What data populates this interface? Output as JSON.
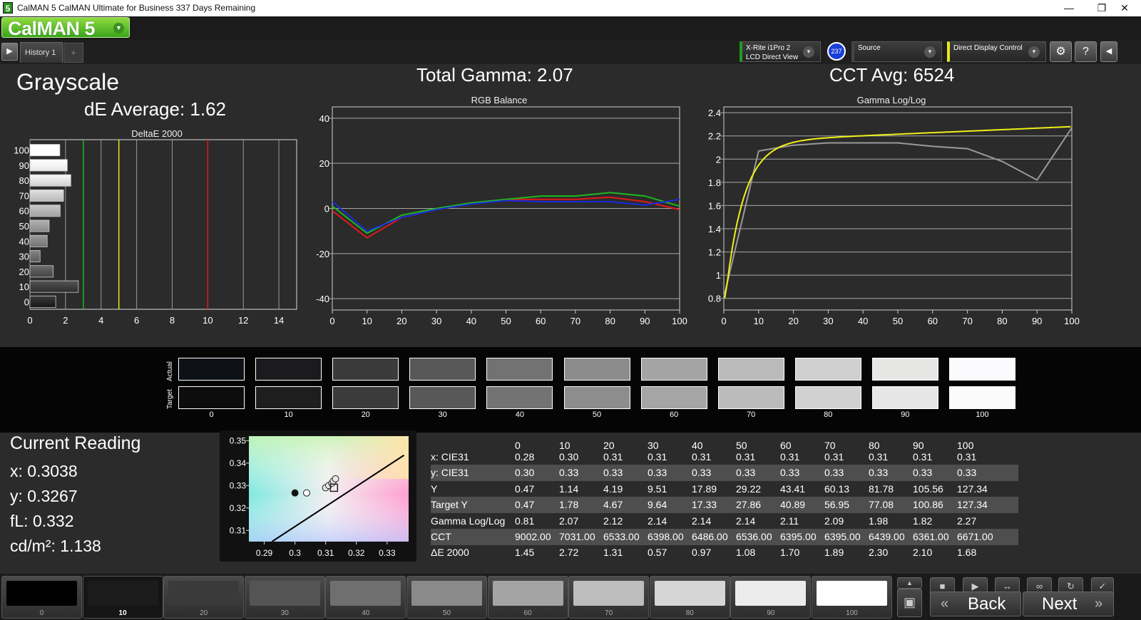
{
  "window": {
    "title": "CalMAN 5 CalMAN Ultimate for Business 337 Days Remaining",
    "icon_text": "5",
    "minimize": "—",
    "maximize": "❐",
    "close": "✕"
  },
  "logo": {
    "text": "CalMAN 5",
    "arrow": "▼"
  },
  "tabs": {
    "history_label": "History 1",
    "add_label": "+"
  },
  "devices": {
    "meter_line1": "X-Rite i1Pro 2",
    "meter_line2": "LCD Direct View",
    "meter_badge": "237",
    "source_label": "Source",
    "display_label": "Direct Display Control",
    "accent_color": "#1f9c20",
    "display_accent": "#e8e81a"
  },
  "summary": {
    "page_title": "Grayscale",
    "de_average": "dE Average: 1.62",
    "total_gamma": "Total Gamma: 2.07",
    "cct_avg": "CCT Avg: 6524"
  },
  "chart_data": [
    {
      "type": "bar",
      "title": "DeltaE 2000",
      "orientation": "horizontal",
      "categories": [
        "100",
        "90",
        "80",
        "70",
        "60",
        "50",
        "40",
        "30",
        "20",
        "10",
        "0"
      ],
      "values": [
        1.68,
        2.1,
        2.3,
        1.89,
        1.7,
        1.08,
        0.97,
        0.57,
        1.31,
        2.72,
        1.45
      ],
      "xlim": [
        0,
        15
      ],
      "xticks": [
        0,
        2,
        4,
        6,
        8,
        10,
        12,
        14
      ],
      "threshold_lines": [
        {
          "value": 3,
          "color": "#1db81d"
        },
        {
          "value": 5,
          "color": "#e6e61a"
        },
        {
          "value": 10,
          "color": "#e01a1a"
        }
      ]
    },
    {
      "type": "line",
      "title": "RGB Balance",
      "x": [
        0,
        10,
        20,
        30,
        40,
        50,
        60,
        70,
        80,
        90,
        100
      ],
      "ylim": [
        -45,
        45
      ],
      "yticks": [
        40,
        20,
        0,
        -20,
        -40
      ],
      "xticks": [
        0,
        10,
        20,
        30,
        40,
        50,
        60,
        70,
        80,
        90,
        100
      ],
      "series": [
        {
          "color": "#e01a1a",
          "values": [
            -1,
            -13,
            -4,
            -0.5,
            2,
            4,
            4,
            4,
            5,
            3,
            -0.5
          ]
        },
        {
          "color": "#1db81d",
          "values": [
            1,
            -11,
            -3,
            0,
            2.5,
            4,
            5.5,
            5.5,
            7,
            5.5,
            1
          ]
        },
        {
          "color": "#1a2ae0",
          "values": [
            3,
            -10,
            -4,
            -0.5,
            2,
            3.5,
            3,
            3,
            3,
            1.5,
            4
          ]
        }
      ]
    },
    {
      "type": "line",
      "title": "Gamma Log/Log",
      "x": [
        0,
        10,
        20,
        30,
        40,
        50,
        60,
        70,
        80,
        90,
        100
      ],
      "ylim": [
        0.7,
        2.45
      ],
      "yticks": [
        2.4,
        2.2,
        2,
        1.8,
        1.6,
        1.4,
        1.2,
        1,
        0.8
      ],
      "xticks": [
        0,
        10,
        20,
        30,
        40,
        50,
        60,
        70,
        80,
        90,
        100
      ],
      "series": [
        {
          "color": "#9a9a9a",
          "values": [
            0.81,
            2.07,
            2.12,
            2.14,
            2.14,
            2.14,
            2.11,
            2.09,
            1.98,
            1.82,
            2.27
          ]
        },
        {
          "color": "#f0f01a",
          "curve": "target",
          "gamma": 2.28
        }
      ]
    },
    {
      "type": "scatter",
      "title": "",
      "xlim": [
        0.285,
        0.337
      ],
      "ylim": [
        0.305,
        0.352
      ],
      "xticks": [
        0.29,
        0.3,
        0.31,
        0.32,
        0.33
      ],
      "yticks": [
        0.35,
        0.34,
        0.33,
        0.32,
        0.31
      ],
      "points": [
        {
          "x": 0.3,
          "y": 0.3267,
          "style": "filled"
        },
        {
          "x": 0.31,
          "y": 0.329,
          "style": "open"
        },
        {
          "x": 0.311,
          "y": 0.33,
          "style": "open"
        },
        {
          "x": 0.312,
          "y": 0.331,
          "style": "open"
        },
        {
          "x": 0.3125,
          "y": 0.332,
          "style": "open"
        },
        {
          "x": 0.3132,
          "y": 0.333,
          "style": "open"
        },
        {
          "x": 0.3038,
          "y": 0.3267,
          "style": "open-light"
        },
        {
          "x": 0.3127,
          "y": 0.329,
          "style": "target-square"
        }
      ]
    }
  ],
  "swatches": {
    "actual_label": "Actual",
    "target_label": "Target",
    "labels": [
      "0",
      "10",
      "20",
      "30",
      "40",
      "50",
      "60",
      "70",
      "80",
      "90",
      "100"
    ],
    "actual_colors": [
      "#0e1116",
      "#1b1b1d",
      "#3a3a3a",
      "#575757",
      "#727272",
      "#8c8c8c",
      "#a4a4a4",
      "#bababa",
      "#d0d0d0",
      "#e6e6e4",
      "#fbfbfd"
    ],
    "target_colors": [
      "#0d0d0d",
      "#1e1e1e",
      "#3b3b3b",
      "#585858",
      "#737373",
      "#8d8d8d",
      "#a5a5a5",
      "#bbbbbb",
      "#d1d1d1",
      "#e6e6e6",
      "#fbfbfb"
    ]
  },
  "reading": {
    "title": "Current Reading",
    "x": "x: 0.3038",
    "y": "y: 0.3267",
    "fl": "fL: 0.332",
    "cdm2": "cd/m²: 1.138"
  },
  "table": {
    "columns": [
      "0",
      "10",
      "20",
      "30",
      "40",
      "50",
      "60",
      "70",
      "80",
      "90",
      "100"
    ],
    "rows": [
      {
        "label": "x: CIE31",
        "values": [
          "0.28",
          "0.30",
          "0.31",
          "0.31",
          "0.31",
          "0.31",
          "0.31",
          "0.31",
          "0.31",
          "0.31",
          "0.31"
        ]
      },
      {
        "label": "y: CIE31",
        "values": [
          "0.30",
          "0.33",
          "0.33",
          "0.33",
          "0.33",
          "0.33",
          "0.33",
          "0.33",
          "0.33",
          "0.33",
          "0.33"
        ]
      },
      {
        "label": "Y",
        "values": [
          "0.47",
          "1.14",
          "4.19",
          "9.51",
          "17.89",
          "29.22",
          "43.41",
          "60.13",
          "81.78",
          "105.56",
          "127.34"
        ]
      },
      {
        "label": "Target Y",
        "values": [
          "0.47",
          "1.78",
          "4.67",
          "9.64",
          "17.33",
          "27.86",
          "40.89",
          "56.95",
          "77.08",
          "100.86",
          "127.34"
        ]
      },
      {
        "label": "Gamma Log/Log",
        "values": [
          "0.81",
          "2.07",
          "2.12",
          "2.14",
          "2.14",
          "2.14",
          "2.11",
          "2.09",
          "1.98",
          "1.82",
          "2.27"
        ]
      },
      {
        "label": "CCT",
        "values": [
          "9002.00",
          "7031.00",
          "6533.00",
          "6398.00",
          "6486.00",
          "6536.00",
          "6395.00",
          "6395.00",
          "6439.00",
          "6361.00",
          "6671.00"
        ]
      },
      {
        "label": "ΔE 2000",
        "values": [
          "1.45",
          "2.72",
          "1.31",
          "0.57",
          "0.97",
          "1.08",
          "1.70",
          "1.89",
          "2.30",
          "2.10",
          "1.68"
        ]
      }
    ]
  },
  "patches": {
    "labels": [
      "0",
      "10",
      "20",
      "30",
      "40",
      "50",
      "60",
      "70",
      "80",
      "90",
      "100"
    ],
    "colors": [
      "#000000",
      "#1c1c1c",
      "#3a3a3a",
      "#545454",
      "#6f6f6f",
      "#8a8a8a",
      "#a4a4a4",
      "#bdbdbd",
      "#d6d6d6",
      "#ececec",
      "#ffffff"
    ],
    "active_index": 1
  },
  "nav": {
    "back_label": "Back",
    "next_label": "Next",
    "back_icon": "«",
    "next_icon": "»"
  }
}
